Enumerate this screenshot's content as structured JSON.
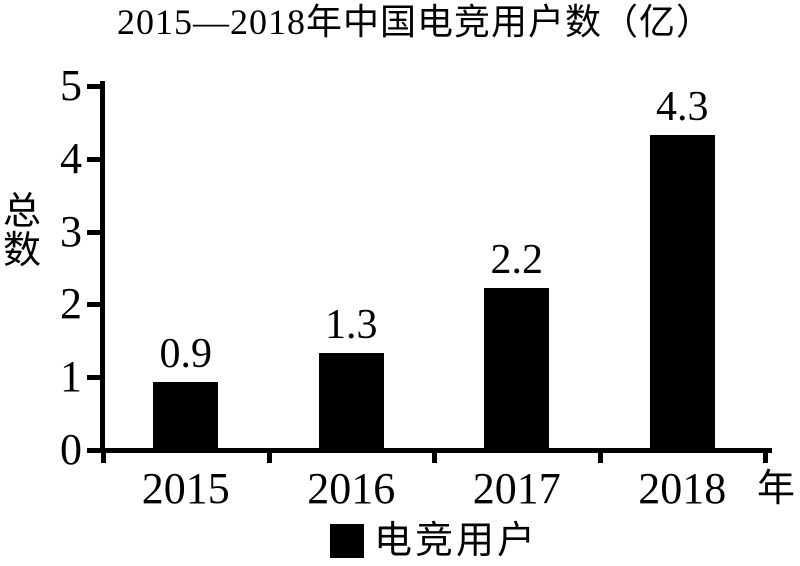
{
  "figure": {
    "background": "#ffffff",
    "ink": "#000000"
  },
  "chart_data": {
    "type": "bar",
    "title": "2015—2018年中国电竞用户数（亿）",
    "ylabel": "总数",
    "xlabel": "年",
    "categories": [
      "2015",
      "2016",
      "2017",
      "2018"
    ],
    "values": [
      0.9,
      1.3,
      2.2,
      4.3
    ],
    "data_labels": [
      "0.9",
      "1.3",
      "2.2",
      "4.3"
    ],
    "ylim": [
      0,
      5
    ],
    "yticks": [
      0,
      1,
      2,
      3,
      4,
      5
    ],
    "grid": false,
    "bar_color": "#000000",
    "legend": [
      {
        "label": "电竞用户",
        "color": "#000000"
      }
    ],
    "legend_position": "bottom"
  }
}
